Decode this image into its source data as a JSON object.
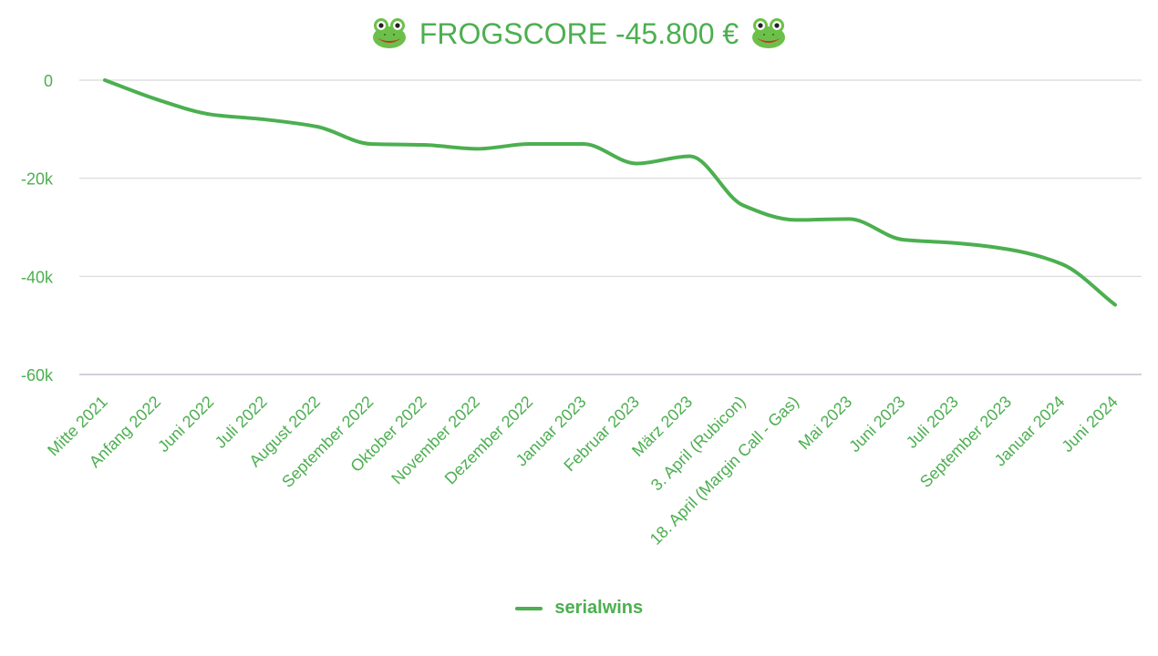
{
  "chart_data": {
    "type": "line",
    "title": "FROGSCORE -45.800 €",
    "xlabel": "",
    "ylabel": "",
    "categories": [
      "Mitte 2021",
      "Anfang 2022",
      "Juni 2022",
      "Juli 2022",
      "August 2022",
      "September 2022",
      "Oktober 2022",
      "November 2022",
      "Dezember 2022",
      "Januar 2023",
      "Februar 2023",
      "März 2023",
      "3. April (Rubicon)",
      "18. April (Margin Call - Gas)",
      "Mai 2023",
      "Juni 2023",
      "Juli 2023",
      "September 2023",
      "Januar 2024",
      "Juni 2024"
    ],
    "series": [
      {
        "name": "serialwins",
        "values": [
          0,
          -4000,
          -7000,
          -8000,
          -9500,
          -13000,
          -13200,
          -14000,
          -13000,
          -13000,
          -17000,
          -15500,
          -25500,
          -28500,
          -28300,
          -32500,
          -33200,
          -34500,
          -37500,
          -45800
        ]
      }
    ],
    "ylim": [
      -60000,
      0
    ],
    "yticks": [
      0,
      -20000,
      -40000,
      -60000
    ],
    "ytick_labels": [
      "0",
      "-20k",
      "-40k",
      "-60k"
    ],
    "grid": true,
    "legend_position": "bottom-center",
    "line_color": "#4caf50",
    "text_color": "#4caf50",
    "grid_color": "#e0e0e0",
    "axis_color": "#d0d0dc"
  },
  "title_icon": "frog-face-icon"
}
